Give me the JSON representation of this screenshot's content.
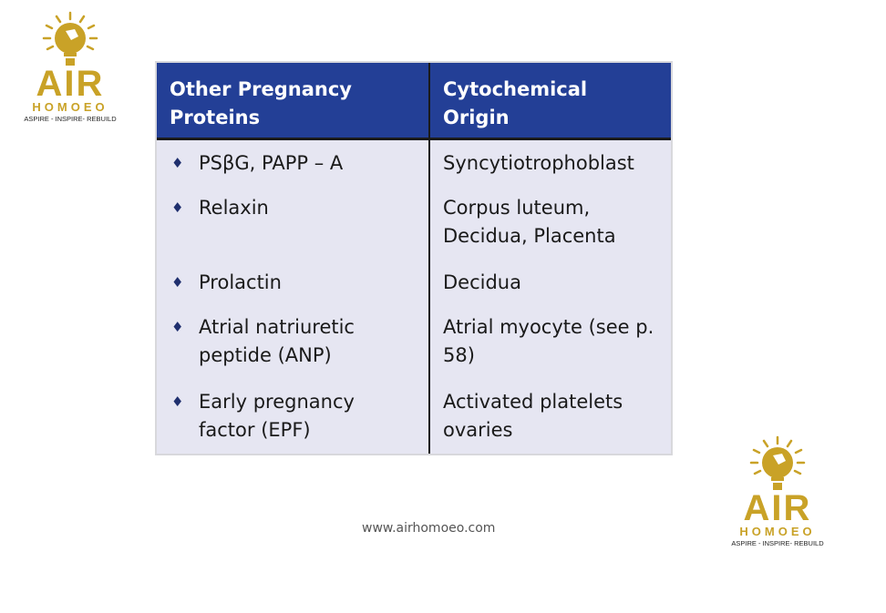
{
  "logo": {
    "brand": "AIR",
    "sub": "HOMOEO",
    "tagline": "ASPIRE - INSPIRE- REBUILD",
    "color": "#c9a227"
  },
  "table": {
    "headers": [
      "Other Pregnancy Proteins",
      "Cytochemical Origin"
    ],
    "header_color": "#233f96",
    "bullet_icon": "diamond",
    "rows": [
      {
        "protein": "PSβG, PAPP – A",
        "origin": "Syncytiotrophoblast"
      },
      {
        "protein": "Relaxin",
        "origin": "Corpus luteum, Decidua, Placenta"
      },
      {
        "protein": "Prolactin",
        "origin": "Decidua"
      },
      {
        "protein": "Atrial natriuretic peptide (ANP)",
        "origin": "Atrial myocyte (see p. 58)"
      },
      {
        "protein": "Early pregnancy factor (EPF)",
        "origin": "Activated platelets ovaries"
      }
    ]
  },
  "footer": {
    "url": "www.airhomoeo.com"
  },
  "bullet": "♦"
}
